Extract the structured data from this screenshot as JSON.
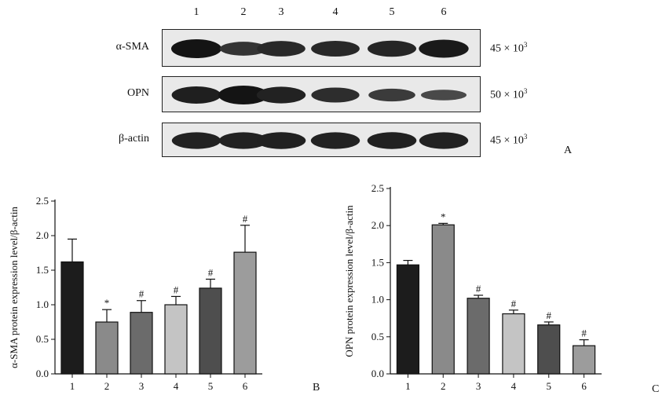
{
  "blot": {
    "lanes": [
      "1",
      "2",
      "3",
      "4",
      "5",
      "6"
    ],
    "rows": [
      {
        "label": "α-SMA",
        "mw_base": "45 × 10",
        "mw_exp": "3",
        "intensities": [
          1.0,
          0.55,
          0.7,
          0.72,
          0.75,
          0.92
        ]
      },
      {
        "label": "OPN",
        "mw_base": "50 × 10",
        "mw_exp": "3",
        "intensities": [
          0.85,
          1.0,
          0.8,
          0.65,
          0.45,
          0.25
        ]
      },
      {
        "label": "β-actin",
        "mw_base": "45 × 10",
        "mw_exp": "3",
        "intensities": [
          0.8,
          0.8,
          0.82,
          0.8,
          0.82,
          0.8
        ]
      }
    ],
    "panel": "A"
  },
  "chart_data": [
    {
      "type": "bar",
      "panel": "B",
      "categories": [
        "1",
        "2",
        "3",
        "4",
        "5",
        "6"
      ],
      "values": [
        1.62,
        0.75,
        0.89,
        1.0,
        1.24,
        1.76
      ],
      "errors": [
        0.33,
        0.18,
        0.17,
        0.12,
        0.13,
        0.39
      ],
      "marks": [
        "",
        "*",
        "#",
        "#",
        "#",
        "#"
      ],
      "colors": [
        "#1c1c1c",
        "#8a8a8a",
        "#6b6b6b",
        "#c4c4c4",
        "#4e4e4e",
        "#9c9c9c"
      ],
      "ylabel": "α-SMA protein expression level/β-actin",
      "ylim": [
        0,
        2.5
      ],
      "yticks": [
        "0.0",
        "0.5",
        "1.0",
        "1.5",
        "2.0",
        "2.5"
      ]
    },
    {
      "type": "bar",
      "panel": "C",
      "categories": [
        "1",
        "2",
        "3",
        "4",
        "5",
        "6"
      ],
      "values": [
        1.47,
        2.01,
        1.02,
        0.81,
        0.66,
        0.38
      ],
      "errors": [
        0.06,
        0.02,
        0.04,
        0.05,
        0.04,
        0.08
      ],
      "marks": [
        "",
        "*",
        "#",
        "#",
        "#",
        "#"
      ],
      "colors": [
        "#1c1c1c",
        "#8a8a8a",
        "#6b6b6b",
        "#c4c4c4",
        "#4e4e4e",
        "#9c9c9c"
      ],
      "ylabel": "OPN protein expression level/β-actin",
      "ylim": [
        0,
        2.5
      ],
      "yticks": [
        "0.0",
        "0.5",
        "1.0",
        "1.5",
        "2.0",
        "2.5"
      ]
    }
  ]
}
